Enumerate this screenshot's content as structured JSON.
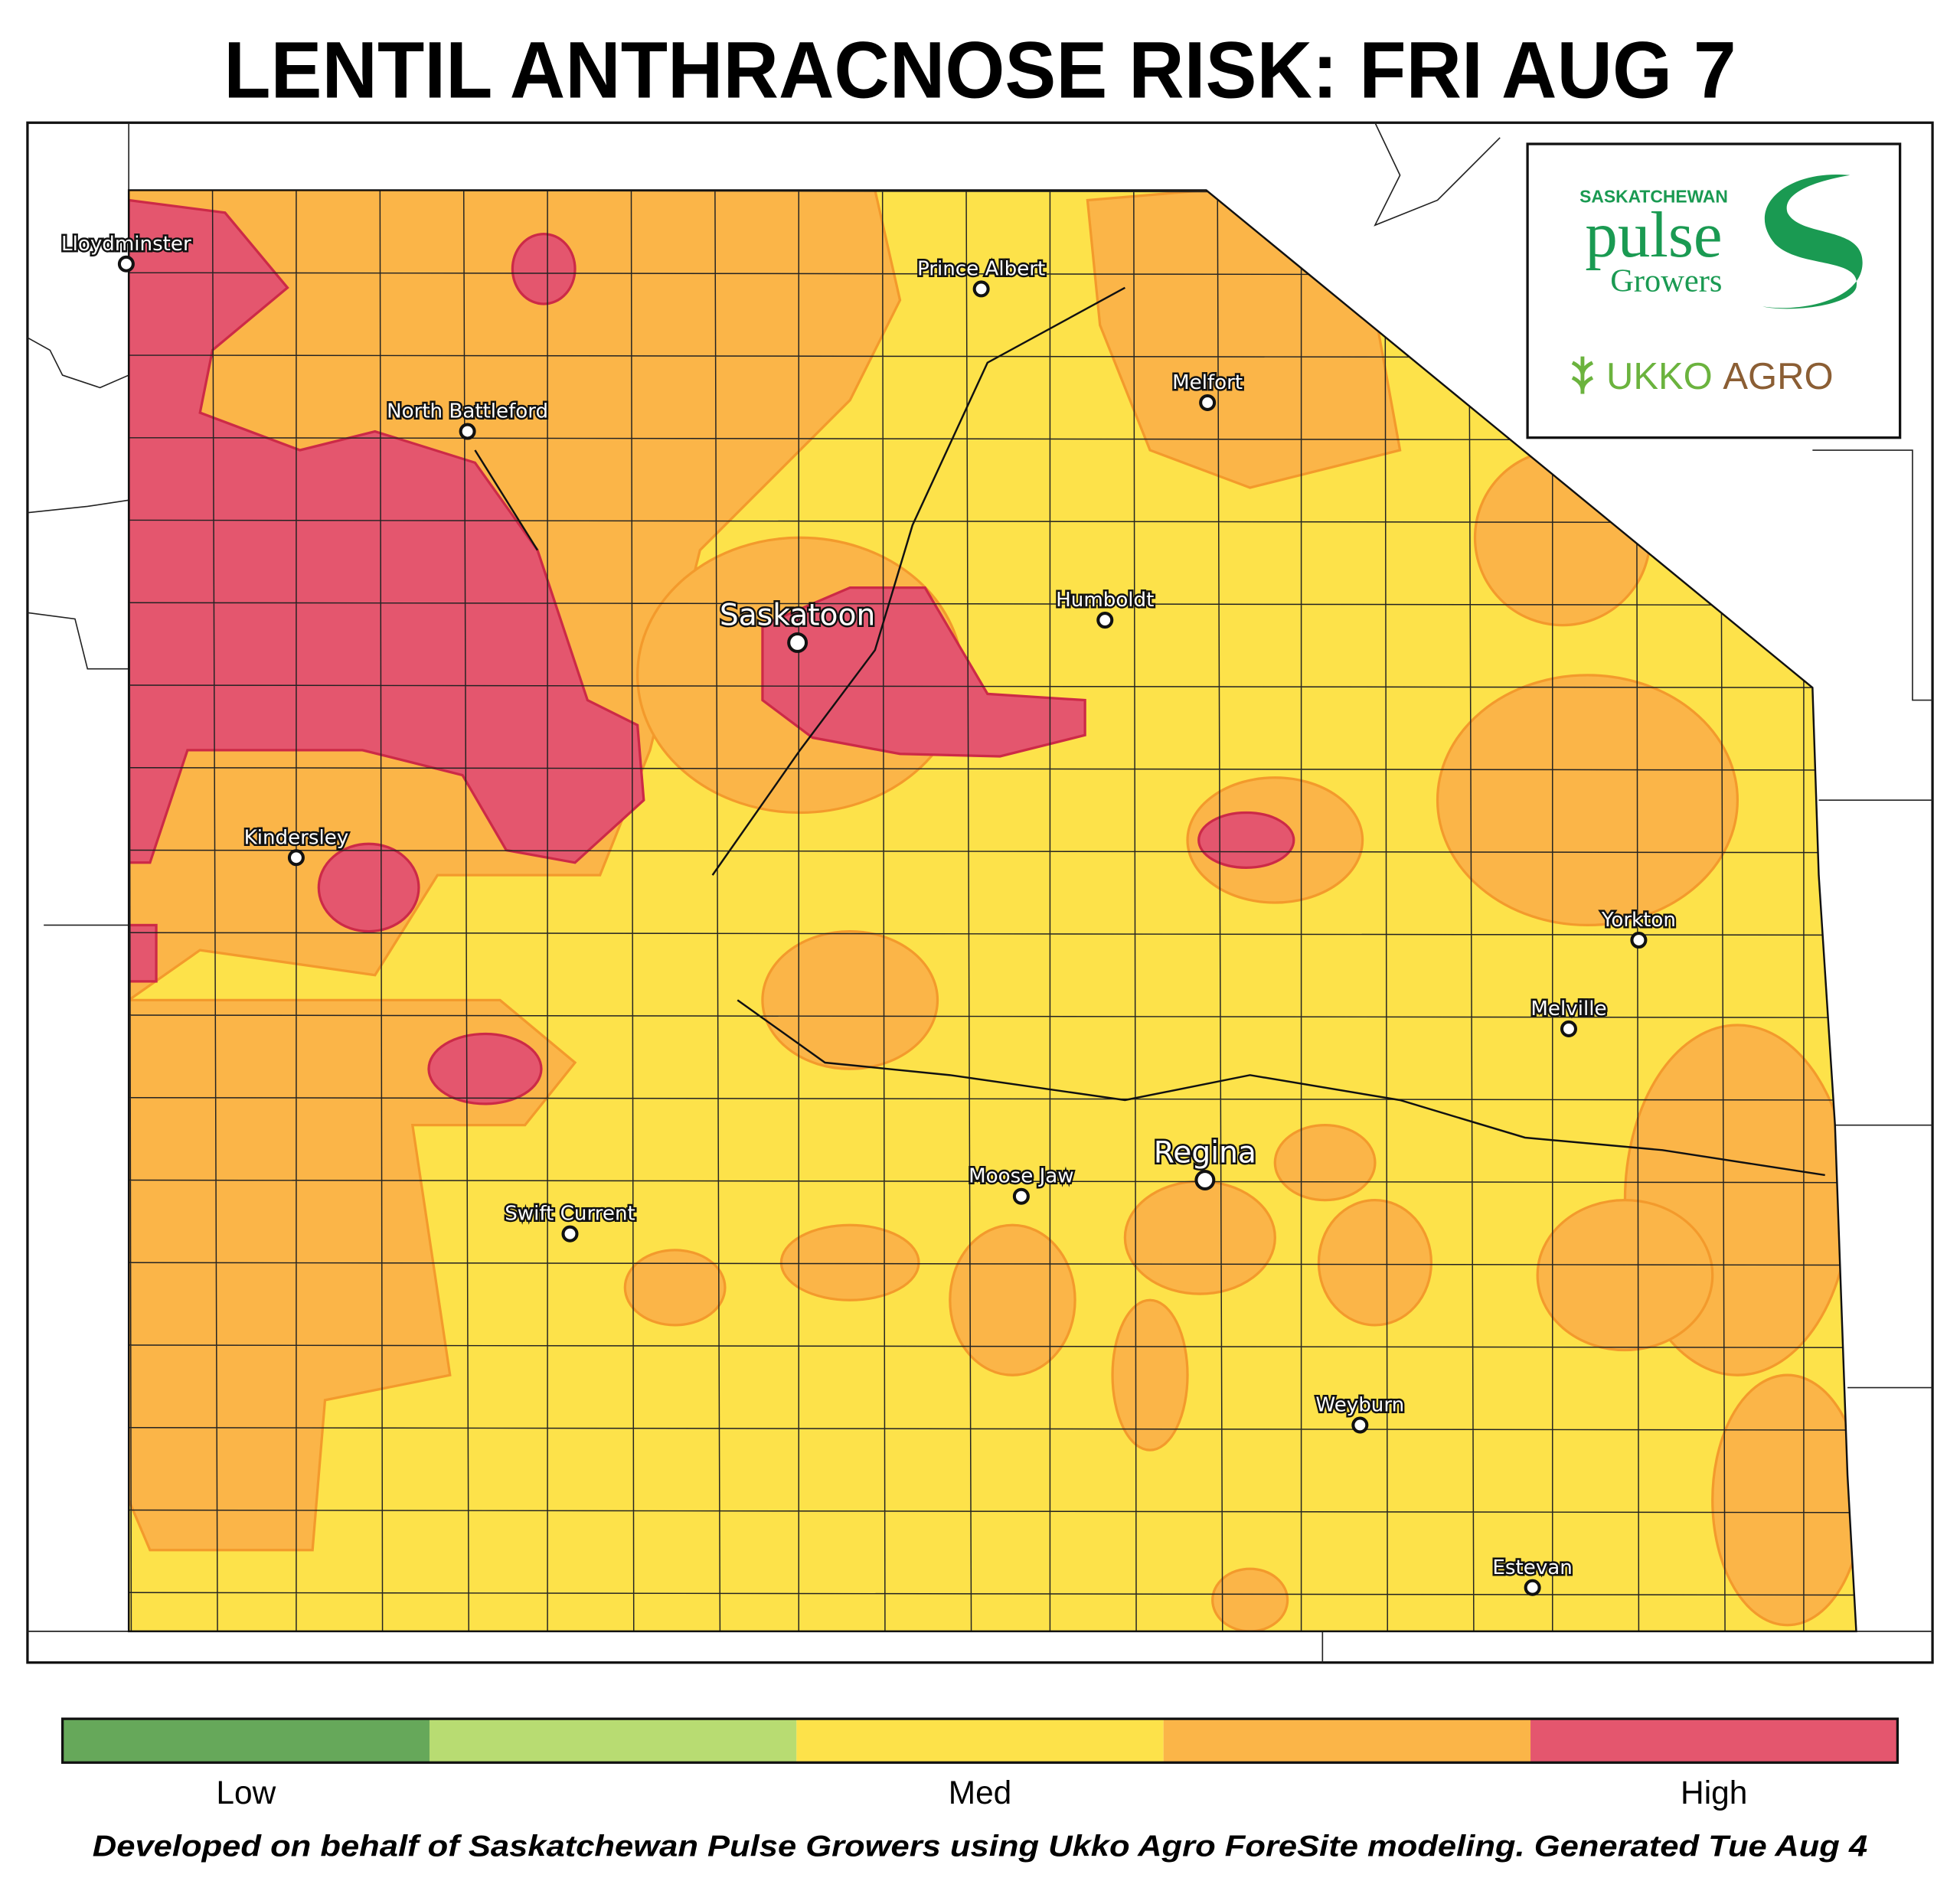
{
  "header": {
    "title": "LENTIL ANTHRACNOSE RISK: FRI AUG 7"
  },
  "logo": {
    "org_top": "SASKATCHEWAN",
    "org_main": "pulse",
    "org_sub": "Growers",
    "partner_1": "UKKO",
    "partner_2": "AGRO"
  },
  "cities": [
    "Lloydminster",
    "Prince Albert",
    "Melfort",
    "North Battleford",
    "Saskatoon",
    "Humboldt",
    "Kindersley",
    "Yorkton",
    "Melville",
    "Regina",
    "Moose Jaw",
    "Swift Current",
    "Weyburn",
    "Estevan"
  ],
  "legend": {
    "colors": [
      "#66a85a",
      "#b8dc72",
      "#fde24a",
      "#fbb548",
      "#e4566e"
    ],
    "labels": [
      "Low",
      "Med",
      "High"
    ]
  },
  "footer": {
    "note": "Developed on behalf of Saskatchewan Pulse Growers using Ukko Agro ForeSite modeling. Generated Tue Aug 4"
  }
}
